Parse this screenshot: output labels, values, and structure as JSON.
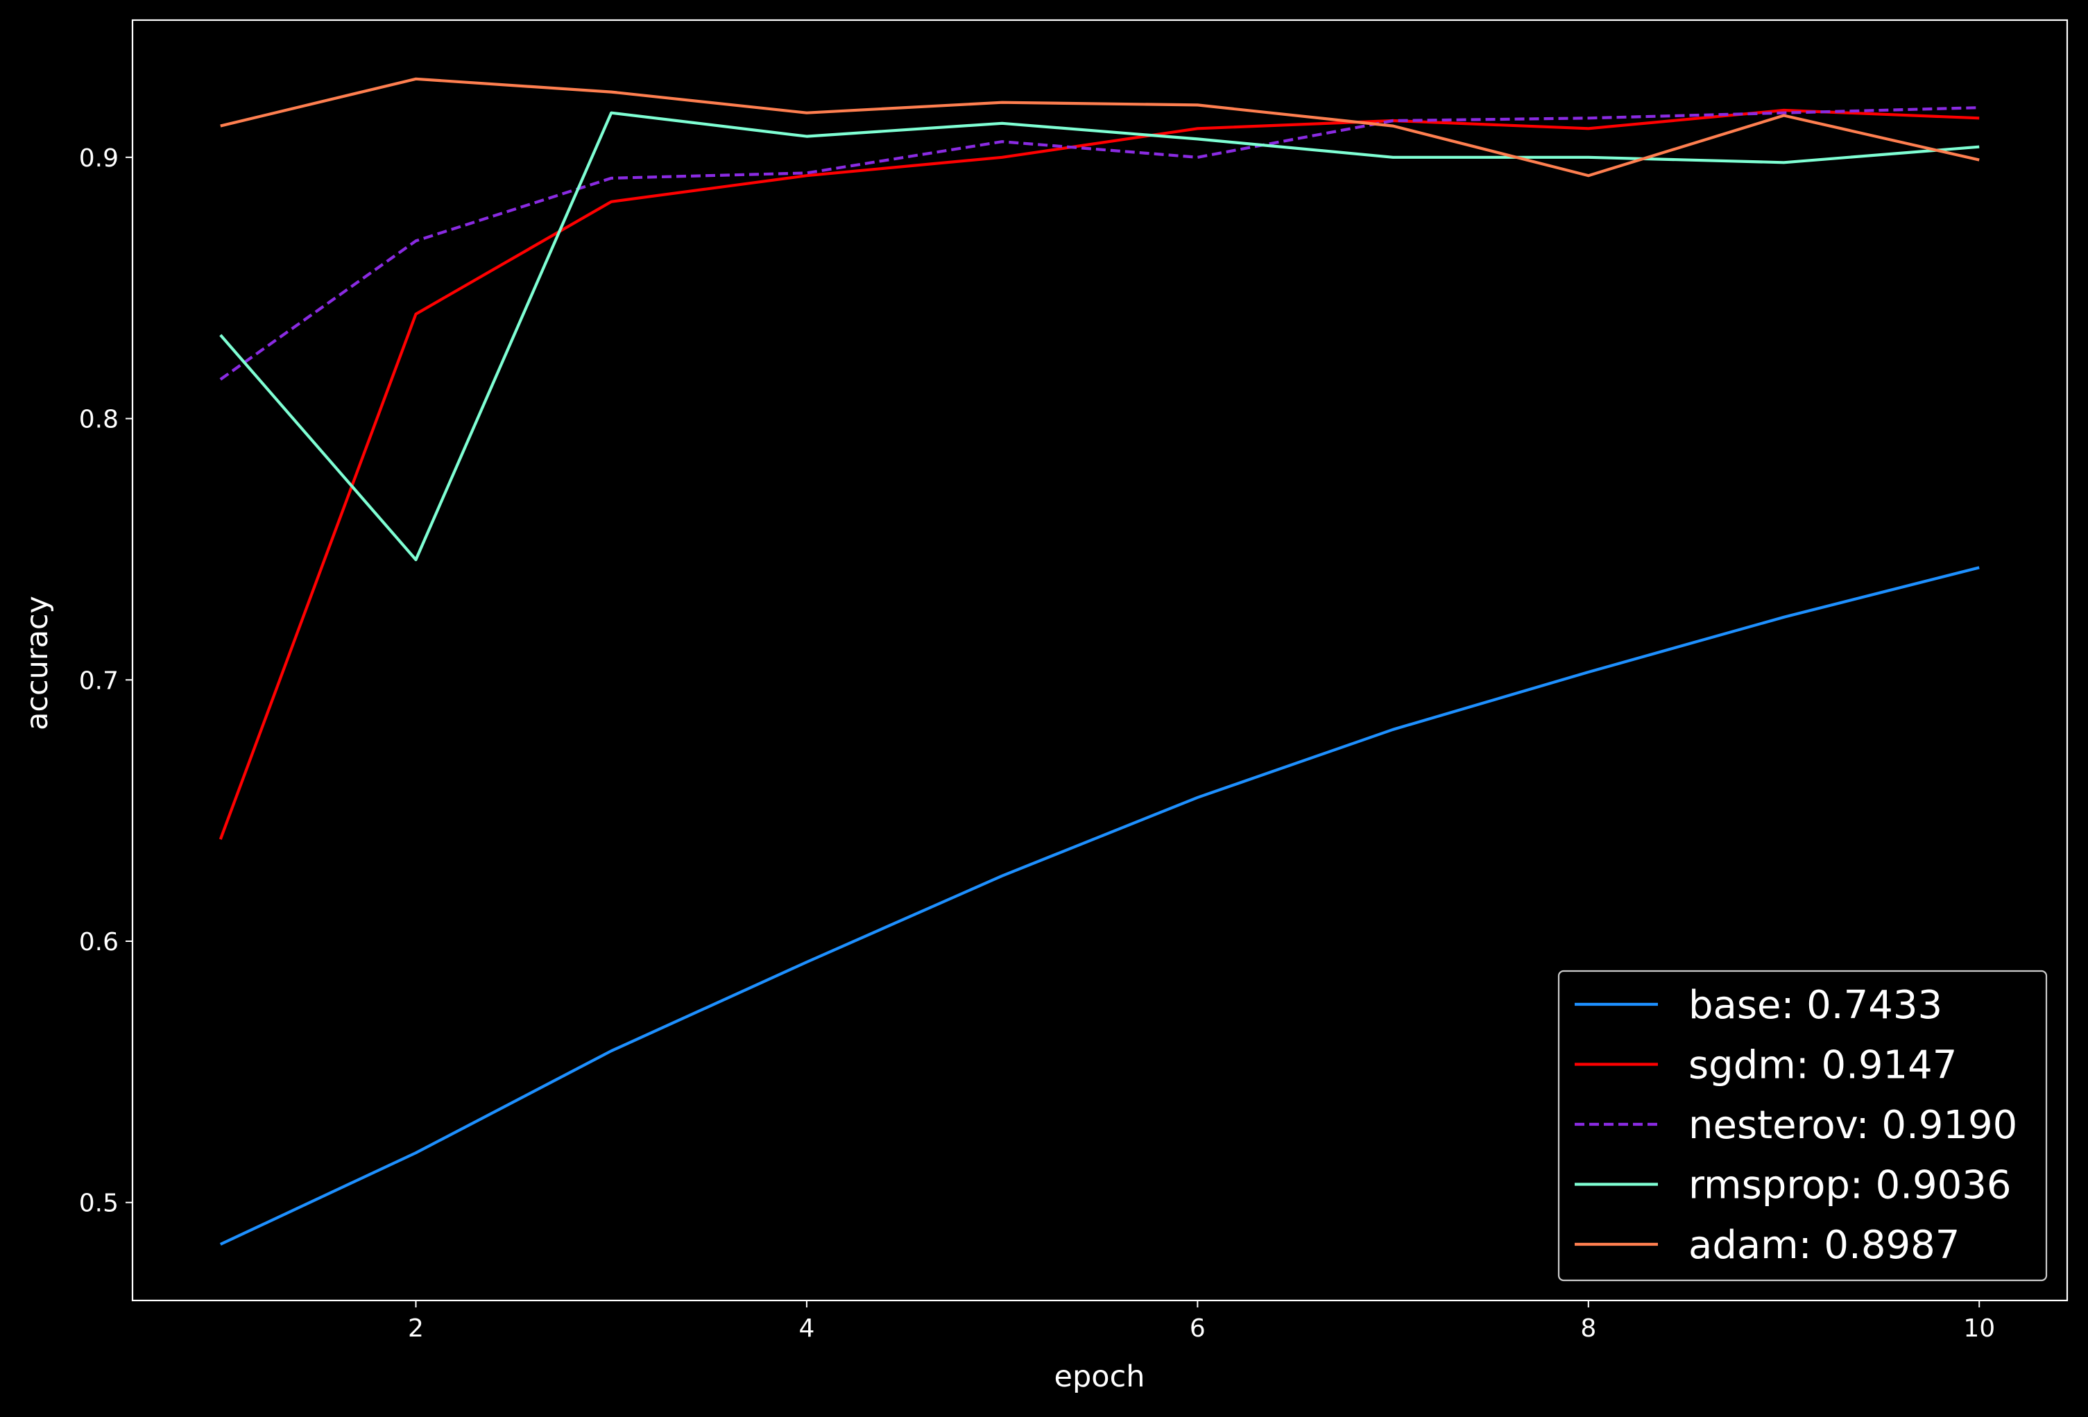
{
  "chart_data": {
    "type": "line",
    "title": "",
    "xlabel": "epoch",
    "ylabel": "accuracy",
    "x": [
      1,
      2,
      3,
      4,
      5,
      6,
      7,
      8,
      9,
      10
    ],
    "xlim": [
      0.55,
      10.45
    ],
    "ylim": [
      0.4625,
      0.9525
    ],
    "xticks": [
      2,
      4,
      6,
      8,
      10
    ],
    "xtick_labels": [
      "2",
      "4",
      "6",
      "8",
      "10"
    ],
    "yticks": [
      0.5,
      0.6,
      0.7,
      0.8,
      0.9
    ],
    "ytick_labels": [
      "0.5",
      "0.6",
      "0.7",
      "0.8",
      "0.9"
    ],
    "grid": false,
    "background": "#000000",
    "foreground": "#ffffff",
    "legend_position": "lower-right",
    "series": [
      {
        "name": "base: 0.7433",
        "color": "#1e90ff",
        "dash": "solid",
        "values": [
          0.484,
          0.519,
          0.558,
          0.592,
          0.625,
          0.655,
          0.681,
          0.703,
          0.724,
          0.743
        ]
      },
      {
        "name": "sgdm: 0.9147",
        "color": "#ff0000",
        "dash": "solid",
        "values": [
          0.639,
          0.84,
          0.883,
          0.893,
          0.9,
          0.911,
          0.914,
          0.911,
          0.918,
          0.915
        ]
      },
      {
        "name": "nesterov: 0.9190",
        "color": "#8a2be2",
        "dash": "dashed",
        "values": [
          0.815,
          0.868,
          0.892,
          0.894,
          0.906,
          0.9,
          0.914,
          0.915,
          0.917,
          0.919
        ]
      },
      {
        "name": "rmsprop: 0.9036",
        "color": "#7fffd4",
        "dash": "solid",
        "values": [
          0.832,
          0.746,
          0.917,
          0.908,
          0.913,
          0.907,
          0.9,
          0.9,
          0.898,
          0.904
        ]
      },
      {
        "name": "adam: 0.8987",
        "color": "#ff7f50",
        "dash": "solid",
        "values": [
          0.912,
          0.93,
          0.925,
          0.917,
          0.921,
          0.92,
          0.912,
          0.893,
          0.916,
          0.899
        ]
      }
    ]
  }
}
